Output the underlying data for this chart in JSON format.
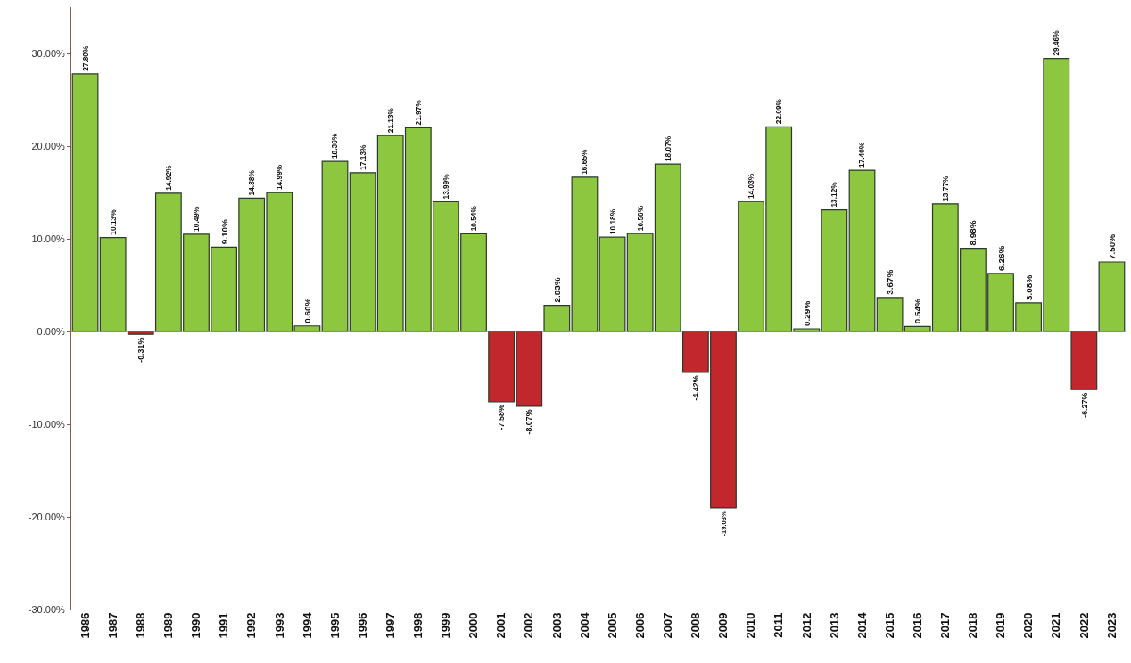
{
  "chart_data": {
    "type": "bar",
    "categories": [
      "1986",
      "1987",
      "1988",
      "1989",
      "1990",
      "1991",
      "1992",
      "1993",
      "1994",
      "1995",
      "1996",
      "1997",
      "1998",
      "1999",
      "2000",
      "2001",
      "2002",
      "2003",
      "2004",
      "2005",
      "2006",
      "2007",
      "2008",
      "2009",
      "2010",
      "2011",
      "2012",
      "2013",
      "2014",
      "2015",
      "2016",
      "2017",
      "2018",
      "2019",
      "2020",
      "2021",
      "2022",
      "2023"
    ],
    "values": [
      27.8,
      10.13,
      -0.31,
      14.92,
      10.49,
      9.1,
      14.38,
      14.99,
      0.6,
      18.36,
      17.13,
      21.13,
      21.97,
      13.99,
      10.54,
      -7.58,
      -8.07,
      2.83,
      16.65,
      10.18,
      10.56,
      18.07,
      -4.42,
      -19.03,
      14.03,
      22.09,
      0.29,
      13.12,
      17.4,
      3.67,
      0.54,
      13.77,
      8.98,
      6.26,
      3.08,
      29.46,
      -6.27,
      7.5
    ],
    "colors": [
      "#8dc63f",
      "#8dc63f",
      "#c1272d",
      "#8dc63f",
      "#8dc63f",
      "#8dc63f",
      "#8dc63f",
      "#8dc63f",
      "#8dc63f",
      "#8dc63f",
      "#8dc63f",
      "#8dc63f",
      "#8dc63f",
      "#8dc63f",
      "#8dc63f",
      "#c1272d",
      "#c1272d",
      "#8dc63f",
      "#8dc63f",
      "#8dc63f",
      "#8dc63f",
      "#8dc63f",
      "#c1272d",
      "#c1272d",
      "#8dc63f",
      "#8dc63f",
      "#8dc63f",
      "#8dc63f",
      "#8dc63f",
      "#8dc63f",
      "#8dc63f",
      "#8dc63f",
      "#8dc63f",
      "#8dc63f",
      "#8dc63f",
      "#8dc63f",
      "#c1272d",
      "#8dc63f"
    ],
    "value_labels": [
      "27.80%",
      "10.13%",
      "-0.31%",
      "14.92%",
      "10.49%",
      "9.10%",
      "14.38%",
      "14.99%",
      "0.60%",
      "18.36%",
      "17.13%",
      "21.13%",
      "21.97%",
      "13.99%",
      "10.54%",
      "-7.58%",
      "-8.07%",
      "2.83%",
      "16.65%",
      "10.18%",
      "10.56%",
      "18.07%",
      "-4.42%",
      "-19.03%",
      "14.03%",
      "22.09%",
      "0.29%",
      "13.12%",
      "17.40%",
      "3.67%",
      "0.54%",
      "13.77%",
      "8.98%",
      "6.26%",
      "3.08%",
      "29.46%",
      "-6.27%",
      "7.50%"
    ],
    "ylim": [
      -30,
      35
    ],
    "yticks": [
      {
        "value": -30,
        "label": "-30.00%"
      },
      {
        "value": -20,
        "label": "-20.00%"
      },
      {
        "value": -10,
        "label": "-10.00%"
      },
      {
        "value": 0,
        "label": "0.00%"
      },
      {
        "value": 10,
        "label": "10.00%"
      },
      {
        "value": 20,
        "label": "20.00%"
      },
      {
        "value": 30,
        "label": "30.00%"
      }
    ],
    "ref_lines": [
      {
        "axis": "y",
        "value": 0,
        "color": "#5a7ab0"
      }
    ]
  }
}
